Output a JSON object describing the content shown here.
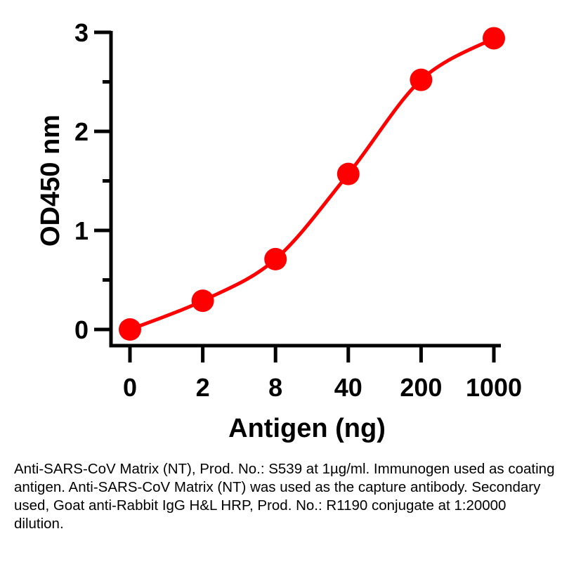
{
  "chart_data": {
    "type": "line",
    "xlabel": "Antigen (ng)",
    "ylabel": "OD450 nm",
    "categories": [
      "0",
      "2",
      "8",
      "40",
      "200",
      "1000"
    ],
    "series": [
      {
        "values": [
          0.0,
          0.29,
          0.71,
          1.57,
          2.52,
          2.94
        ]
      }
    ],
    "ylim": [
      0,
      3
    ],
    "yticks": [
      "0",
      "1",
      "2",
      "3"
    ],
    "y_minor_step": 0.5,
    "grid": false,
    "legend": "none",
    "series_color": "#ff0000",
    "axis_color": "#000000"
  },
  "caption": "Anti-SARS-CoV Matrix (NT), Prod. No.: S539 at 1µg/ml. Immunogen used as coating antigen. Anti-SARS-CoV Matrix (NT) was used as the capture antibody. Secondary used, Goat anti-Rabbit IgG H&L HRP, Prod. No.: R1190 conjugate at 1:20000 dilution."
}
